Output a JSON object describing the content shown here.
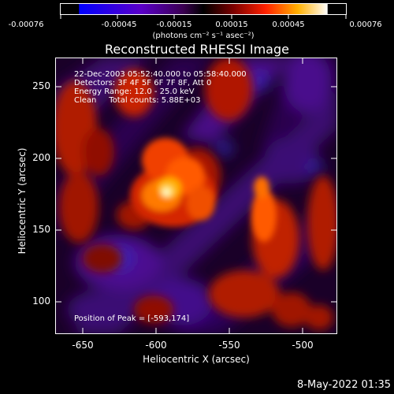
{
  "colorbar": {
    "tick_labels": [
      "-0.00076",
      "-0.00045",
      "-0.00015",
      "0.00015",
      "0.00045",
      "0.00076"
    ],
    "unit": "(photons cm⁻² s⁻¹ asec⁻²)"
  },
  "title": "Reconstructed RHESSI Image",
  "annotations": {
    "line1": "22-Dec-2003 05:52:40.000 to 05:58:40.000",
    "line2": "Detectors: 3F 4F 5F 6F 7F 8F, Att 0",
    "line3": "Energy Range: 12.0 - 25.0 keV",
    "line4": "Clean     Total counts: 5.88E+03",
    "peak": "Position of Peak = [-593,174]"
  },
  "axes": {
    "xlabel": "Heliocentric X (arcsec)",
    "ylabel": "Heliocentric Y (arcsec)",
    "xticks": [
      "-650",
      "-600",
      "-550",
      "-500"
    ],
    "yticks": [
      "250",
      "200",
      "150",
      "100"
    ],
    "xlim": [
      -670,
      -478
    ],
    "ylim": [
      78,
      270
    ]
  },
  "timestamp": "8-May-2022 01:35",
  "colors": {
    "background": "#000000",
    "axis": "#ffffff"
  }
}
